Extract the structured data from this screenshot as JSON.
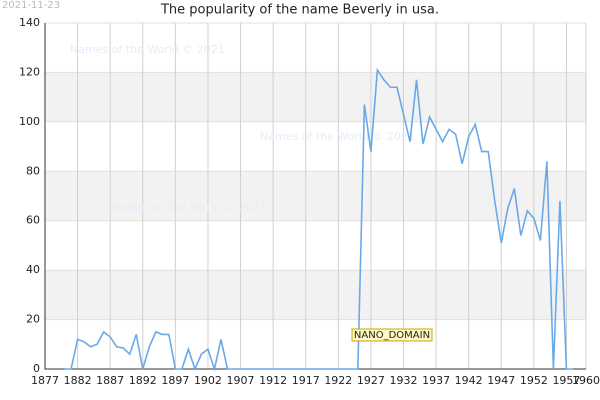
{
  "chart_data": {
    "type": "line",
    "title": "The popularity of the name Beverly in usa.",
    "stamp": "2021-11-23",
    "domain_label": "NANO_DOMAIN",
    "watermarks": [
      "Names of the World © 2021",
      "Names of the World © 2021",
      "Names of the World © 2021"
    ],
    "x": [
      1880,
      1881,
      1882,
      1883,
      1884,
      1885,
      1886,
      1887,
      1888,
      1889,
      1890,
      1891,
      1892,
      1893,
      1894,
      1895,
      1896,
      1897,
      1898,
      1899,
      1900,
      1901,
      1902,
      1903,
      1904,
      1905,
      1906,
      1907,
      1908,
      1909,
      1910,
      1911,
      1912,
      1913,
      1914,
      1915,
      1916,
      1917,
      1918,
      1919,
      1920,
      1921,
      1922,
      1923,
      1924,
      1925,
      1926,
      1927,
      1928,
      1929,
      1930,
      1931,
      1932,
      1933,
      1934,
      1935,
      1936,
      1937,
      1938,
      1939,
      1940,
      1941,
      1942,
      1943,
      1944,
      1945,
      1946,
      1947,
      1948,
      1949,
      1950,
      1951,
      1952,
      1953,
      1954,
      1955,
      1956,
      1957,
      1958
    ],
    "series": [
      {
        "color": "#6aa9e8",
        "values": [
          0,
          0,
          12,
          11,
          9,
          10,
          15,
          13,
          9,
          8.5,
          6,
          14,
          0,
          9,
          15,
          14,
          14,
          0,
          0,
          8,
          0,
          6,
          8,
          0,
          12,
          0,
          0,
          0,
          0,
          0,
          0,
          0,
          0,
          0,
          0,
          0,
          0,
          0,
          0,
          0,
          0,
          0,
          0,
          0,
          0,
          0,
          107,
          88,
          121,
          117,
          114,
          114,
          103,
          92,
          117,
          91,
          102,
          97,
          92,
          97,
          95,
          83,
          94,
          99,
          88,
          88,
          68,
          51,
          65,
          73,
          54,
          64,
          61,
          52,
          84,
          0,
          68,
          0,
          0
        ]
      }
    ],
    "xlim": [
      1877,
      1960
    ],
    "xticks": [
      1877,
      1882,
      1887,
      1892,
      1897,
      1902,
      1907,
      1912,
      1917,
      1922,
      1927,
      1932,
      1937,
      1942,
      1947,
      1952,
      1957,
      1960
    ],
    "ylim": [
      0,
      140
    ],
    "yticks": [
      0,
      20,
      40,
      60,
      80,
      100,
      120,
      140
    ],
    "grid": true,
    "banded": true
  }
}
